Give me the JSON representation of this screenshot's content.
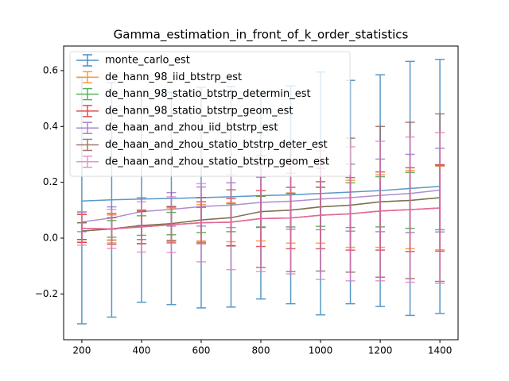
{
  "chart_data": {
    "type": "errorbar-line",
    "title": "Gamma_estimation_in_front_of_k_order_statistics",
    "x": [
      200,
      300,
      400,
      500,
      600,
      700,
      800,
      900,
      1000,
      1100,
      1200,
      1300,
      1400
    ],
    "xlim": [
      139,
      1461
    ],
    "xticks": [
      200,
      400,
      600,
      800,
      1000,
      1200,
      1400
    ],
    "ylim": [
      -0.364,
      0.688
    ],
    "yticks": [
      {
        "value": -0.2,
        "label": "−0.2"
      },
      {
        "value": 0,
        "label": "0.0"
      },
      0.2,
      0.4,
      0.6
    ],
    "legend": "upper left",
    "series": [
      {
        "name": "monte_carlo_est",
        "color": "#1f77b4",
        "values": [
          0.133,
          0.137,
          0.14,
          0.142,
          0.145,
          0.148,
          0.152,
          0.155,
          0.16,
          0.165,
          0.17,
          0.178,
          0.185
        ],
        "errors": [
          0.44,
          0.42,
          0.37,
          0.38,
          0.395,
          0.395,
          0.37,
          0.39,
          0.435,
          0.4,
          0.415,
          0.455,
          0.455
        ]
      },
      {
        "name": "de_hann_98_iid_btstrp_est",
        "color": "#ff7f0e",
        "values": [
          0.035,
          0.033,
          0.04,
          0.048,
          0.055,
          0.057,
          0.07,
          0.072,
          0.082,
          0.087,
          0.097,
          0.102,
          0.108
        ],
        "errors": [
          0.05,
          0.05,
          0.06,
          0.06,
          0.065,
          0.07,
          0.08,
          0.09,
          0.1,
          0.12,
          0.13,
          0.14,
          0.15
        ]
      },
      {
        "name": "de_hann_98_statio_btstrp_determin_est",
        "color": "#2ca02c",
        "values": [
          0.025,
          0.033,
          0.045,
          0.052,
          0.065,
          0.073,
          0.095,
          0.1,
          0.112,
          0.118,
          0.13,
          0.135,
          0.145
        ],
        "errors": [
          0.03,
          0.03,
          0.035,
          0.04,
          0.045,
          0.05,
          0.055,
          0.06,
          0.07,
          0.08,
          0.09,
          0.1,
          0.115
        ]
      },
      {
        "name": "de_hann_98_statio_btstrp_geom_est",
        "color": "#d62728",
        "values": [
          0.035,
          0.033,
          0.04,
          0.048,
          0.055,
          0.057,
          0.07,
          0.072,
          0.082,
          0.087,
          0.097,
          0.102,
          0.108
        ],
        "errors": [
          0.05,
          0.055,
          0.06,
          0.065,
          0.075,
          0.085,
          0.1,
          0.11,
          0.12,
          0.13,
          0.14,
          0.15,
          0.155
        ]
      },
      {
        "name": "de_haan_and_zhou_iid_btstrp_est",
        "color": "#9467bd",
        "values": [
          0.058,
          0.072,
          0.095,
          0.103,
          0.113,
          0.118,
          0.128,
          0.132,
          0.14,
          0.145,
          0.153,
          0.16,
          0.172
        ],
        "errors": [
          0.035,
          0.04,
          0.05,
          0.06,
          0.07,
          0.08,
          0.09,
          0.1,
          0.11,
          0.12,
          0.13,
          0.14,
          0.15
        ]
      },
      {
        "name": "de_haan_and_zhou_statio_btstrp_deter_est",
        "color": "#8c564b",
        "values": [
          0.025,
          0.033,
          0.045,
          0.052,
          0.065,
          0.073,
          0.095,
          0.1,
          0.112,
          0.118,
          0.13,
          0.135,
          0.145
        ],
        "errors": [
          0.03,
          0.04,
          0.05,
          0.06,
          0.08,
          0.1,
          0.2,
          0.22,
          0.23,
          0.24,
          0.27,
          0.28,
          0.3
        ]
      },
      {
        "name": "de_haan_and_zhou_statio_btstrp_geom_est",
        "color": "#e377c2",
        "values": [
          0.035,
          0.033,
          0.04,
          0.048,
          0.055,
          0.057,
          0.07,
          0.072,
          0.082,
          0.087,
          0.097,
          0.102,
          0.108
        ],
        "errors": [
          0.06,
          0.07,
          0.09,
          0.1,
          0.14,
          0.17,
          0.19,
          0.2,
          0.23,
          0.24,
          0.25,
          0.26,
          0.27
        ]
      }
    ]
  }
}
